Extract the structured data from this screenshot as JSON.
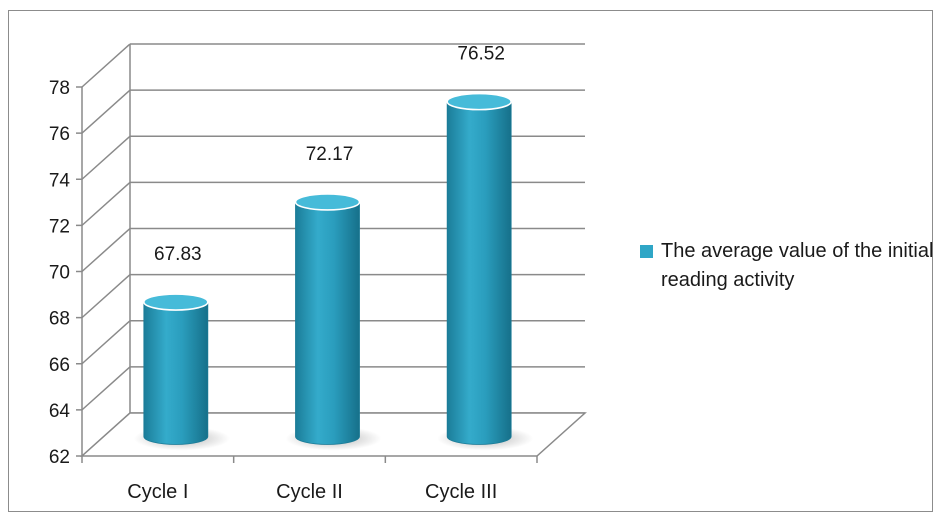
{
  "chart_data": {
    "type": "bar",
    "style": "3d-cylinder",
    "categories": [
      "Cycle I",
      "Cycle II",
      "Cycle III"
    ],
    "series": [
      {
        "name": "The average value of the initial reading activity",
        "values": [
          67.83,
          72.17,
          76.52
        ],
        "color": "#2fa6c6"
      }
    ],
    "data_labels": [
      "67.83",
      "72.17",
      "76.52"
    ],
    "ylim": [
      62,
      78
    ],
    "yticks": [
      62,
      64,
      66,
      68,
      70,
      72,
      74,
      76,
      78
    ],
    "grid": true,
    "legend_position": "right",
    "colors": {
      "bar": "#2fa6c6",
      "bar_dark": "#1b7d99",
      "bar_top": "#46bbd9",
      "grid": "#8a8a8a"
    }
  }
}
